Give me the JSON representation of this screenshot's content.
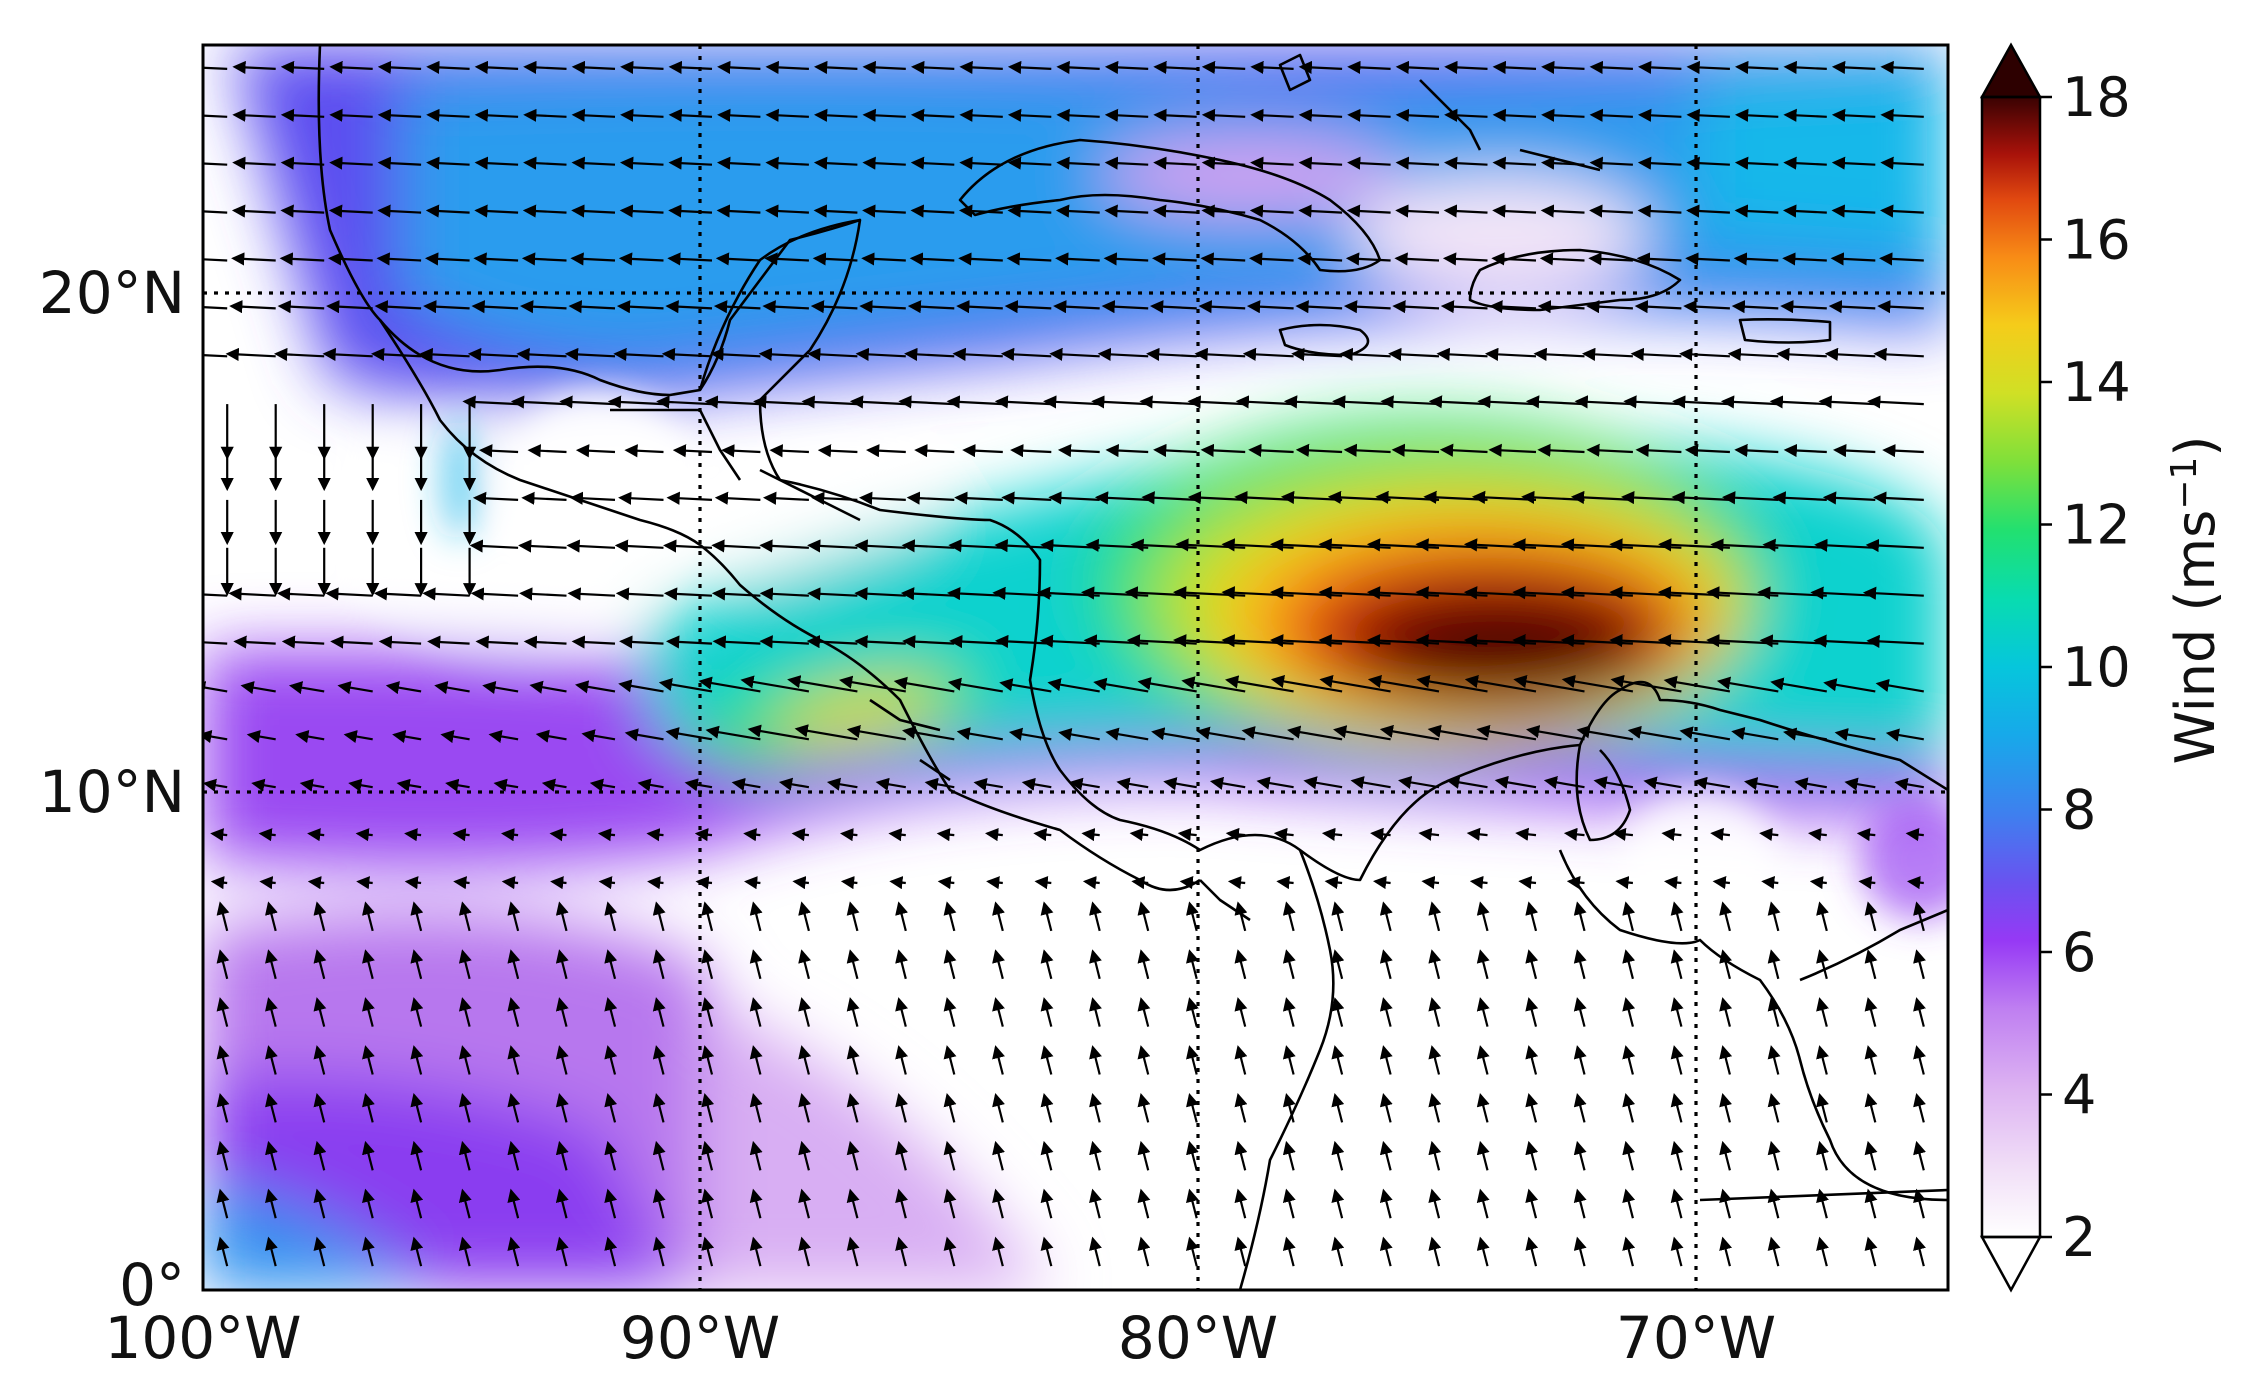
{
  "map": {
    "type": "filled-contour wind speed map with wind vectors",
    "region": "Caribbean / Central America",
    "longitude_ticks": [
      "100°W",
      "90°W",
      "80°W",
      "70°W"
    ],
    "latitude_ticks": [
      "20°N",
      "10°N",
      "0°"
    ],
    "lon_range": [
      -100,
      -65
    ],
    "lat_range": [
      0,
      25
    ],
    "gridlines": "dotted at 10° intervals",
    "wind_jet": {
      "location": "Caribbean Low-Level Jet, centered near 75°W, 12.5°N",
      "peak_speed": 18,
      "direction": "easterly (westward)"
    },
    "secondary_jet": "Papagayo jet near 87°W, 11°N",
    "tehuantepec_jet": "southward flow near 95°W, 16°N"
  },
  "colorbar": {
    "label": "Wind",
    "unit_base": "ms",
    "unit_exp": "−1",
    "ticks": [
      "18",
      "16",
      "14",
      "12",
      "10",
      "8",
      "6",
      "4",
      "2"
    ],
    "min": 2,
    "max": 18,
    "extend": "both",
    "colors": [
      "#ffffff",
      "#e7c6f3",
      "#c78cf0",
      "#9438f5",
      "#4f6cf0",
      "#1aa8ec",
      "#05d2d0",
      "#14e08c",
      "#58e047",
      "#c8e224",
      "#f2d51a",
      "#f89417",
      "#e44710",
      "#b5140a",
      "#6b0404",
      "#2d0000"
    ]
  }
}
